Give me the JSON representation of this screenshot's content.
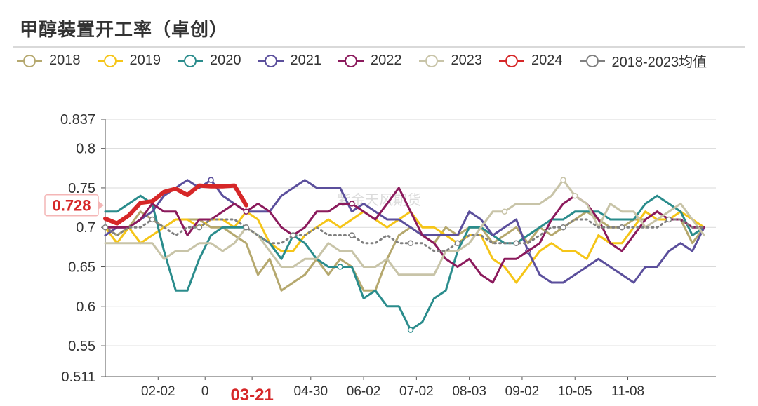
{
  "title": "甲醇装置开工率（卓创）",
  "watermark": "紫金天风期货",
  "chart_data": {
    "type": "line",
    "title": "甲醇装置开工率（卓创）",
    "xlabel": "",
    "ylabel": "",
    "ylim": [
      0.511,
      0.837
    ],
    "y_ticks": [
      "0.511",
      "0.55",
      "0.6",
      "0.65",
      "0.7",
      "0.75",
      "0.8",
      "0.837"
    ],
    "y_tick_values": [
      0.511,
      0.55,
      0.6,
      0.65,
      0.7,
      0.75,
      0.8,
      0.837
    ],
    "x_week_range": [
      0,
      52
    ],
    "x_ticks": [
      {
        "label": "02-02",
        "week": 4.5
      },
      {
        "label": "0",
        "week": 8.5
      },
      {
        "label": "03-21",
        "week": 12.5,
        "highlight": true
      },
      {
        "label": "04-30",
        "week": 17.5
      },
      {
        "label": "06-02",
        "week": 22
      },
      {
        "label": "07-02",
        "week": 26.5
      },
      {
        "label": "08-03",
        "week": 31
      },
      {
        "label": "09-02",
        "week": 35.5
      },
      {
        "label": "10-05",
        "week": 40
      },
      {
        "label": "11-08",
        "week": 44.5
      }
    ],
    "current_value_label": "0.728",
    "current_value": 0.728,
    "grid": true,
    "legend_position": "top",
    "series": [
      {
        "name": "2018",
        "color": "#b5a86e",
        "width": 3,
        "dash": "",
        "markers": [],
        "values": [
          0.7,
          0.69,
          0.7,
          0.72,
          0.71,
          0.7,
          0.71,
          0.71,
          0.71,
          0.7,
          0.7,
          0.69,
          0.68,
          0.64,
          0.66,
          0.62,
          0.63,
          0.64,
          0.66,
          0.64,
          0.66,
          0.65,
          0.62,
          0.62,
          0.66,
          0.69,
          0.7,
          0.69,
          0.68,
          0.7,
          0.69,
          0.7,
          0.7,
          0.68,
          0.69,
          0.7,
          0.68,
          0.7,
          0.69,
          0.7,
          0.71,
          0.72,
          0.71,
          0.7,
          0.7,
          0.71,
          0.71,
          0.72,
          0.71,
          0.71,
          0.68,
          0.7
        ]
      },
      {
        "name": "2019",
        "color": "#f5c518",
        "width": 3,
        "dash": "",
        "markers": [],
        "values": [
          0.7,
          0.68,
          0.7,
          0.68,
          0.69,
          0.7,
          0.71,
          0.71,
          0.7,
          0.71,
          0.71,
          0.7,
          0.72,
          0.71,
          0.68,
          0.67,
          0.67,
          0.69,
          0.7,
          0.71,
          0.7,
          0.71,
          0.72,
          0.71,
          0.7,
          0.71,
          0.72,
          0.7,
          0.7,
          0.69,
          0.68,
          0.69,
          0.69,
          0.66,
          0.65,
          0.63,
          0.65,
          0.67,
          0.68,
          0.67,
          0.67,
          0.66,
          0.69,
          0.68,
          0.68,
          0.7,
          0.72,
          0.71,
          0.71,
          0.72,
          0.71,
          0.7
        ]
      },
      {
        "name": "2020",
        "color": "#2a8c8c",
        "width": 3,
        "dash": "",
        "markers": [
          20,
          26
        ],
        "values": [
          0.72,
          0.72,
          0.73,
          0.74,
          0.73,
          0.67,
          0.62,
          0.62,
          0.66,
          0.69,
          0.7,
          0.7,
          0.7,
          0.69,
          0.68,
          0.66,
          0.69,
          0.68,
          0.66,
          0.65,
          0.65,
          0.65,
          0.61,
          0.62,
          0.6,
          0.6,
          0.57,
          0.58,
          0.61,
          0.62,
          0.67,
          0.7,
          0.7,
          0.69,
          0.68,
          0.68,
          0.69,
          0.7,
          0.71,
          0.71,
          0.72,
          0.72,
          0.72,
          0.71,
          0.71,
          0.71,
          0.73,
          0.74,
          0.73,
          0.72,
          0.69,
          0.7
        ]
      },
      {
        "name": "2021",
        "color": "#5b4f9c",
        "width": 3,
        "dash": "",
        "markers": [
          9,
          36
        ],
        "values": [
          0.69,
          0.7,
          0.7,
          0.71,
          0.72,
          0.74,
          0.75,
          0.76,
          0.75,
          0.76,
          0.74,
          0.73,
          0.72,
          0.72,
          0.72,
          0.74,
          0.75,
          0.76,
          0.75,
          0.75,
          0.75,
          0.72,
          0.73,
          0.72,
          0.71,
          0.71,
          0.7,
          0.69,
          0.69,
          0.69,
          0.69,
          0.72,
          0.71,
          0.69,
          0.7,
          0.71,
          0.67,
          0.64,
          0.63,
          0.63,
          0.64,
          0.65,
          0.66,
          0.65,
          0.64,
          0.63,
          0.65,
          0.65,
          0.67,
          0.68,
          0.67,
          0.7
        ]
      },
      {
        "name": "2022",
        "color": "#8b1a5c",
        "width": 3,
        "dash": "",
        "markers": [
          12,
          21
        ],
        "values": [
          0.7,
          0.7,
          0.7,
          0.71,
          0.73,
          0.72,
          0.72,
          0.69,
          0.71,
          0.71,
          0.72,
          0.73,
          0.72,
          0.73,
          0.72,
          0.7,
          0.69,
          0.7,
          0.72,
          0.72,
          0.73,
          0.73,
          0.72,
          0.71,
          0.73,
          0.75,
          0.72,
          0.69,
          0.68,
          0.66,
          0.65,
          0.66,
          0.64,
          0.63,
          0.66,
          0.66,
          0.67,
          0.68,
          0.71,
          0.73,
          0.74,
          0.73,
          0.71,
          0.68,
          0.67,
          0.69,
          0.71,
          0.72,
          0.71,
          0.71,
          0.7,
          0.7
        ]
      },
      {
        "name": "2023",
        "color": "#c8c4a8",
        "width": 3,
        "dash": "",
        "markers": [
          34,
          39,
          40
        ],
        "values": [
          0.68,
          0.68,
          0.68,
          0.68,
          0.68,
          0.66,
          0.67,
          0.67,
          0.68,
          0.68,
          0.67,
          0.68,
          0.7,
          0.69,
          0.67,
          0.65,
          0.65,
          0.66,
          0.66,
          0.68,
          0.67,
          0.67,
          0.65,
          0.65,
          0.66,
          0.64,
          0.64,
          0.64,
          0.64,
          0.67,
          0.67,
          0.68,
          0.7,
          0.72,
          0.72,
          0.73,
          0.73,
          0.73,
          0.74,
          0.76,
          0.74,
          0.73,
          0.7,
          0.73,
          0.72,
          0.72,
          0.7,
          0.71,
          0.72,
          0.73,
          0.71,
          0.69
        ]
      },
      {
        "name": "2024",
        "color": "#d62728",
        "width": 6,
        "dash": "",
        "markers": [],
        "values": [
          0.711,
          0.705,
          0.715,
          0.731,
          0.733,
          0.745,
          0.749,
          0.741,
          0.753,
          0.752,
          0.752,
          0.753,
          0.728
        ]
      },
      {
        "name": "2018-2023均值",
        "color": "#808080",
        "width": 3,
        "dash": "2,5",
        "markers": [
          0,
          4,
          8,
          12,
          16,
          21,
          26,
          30,
          35,
          39,
          44,
          48
        ],
        "values": [
          0.7,
          0.69,
          0.7,
          0.7,
          0.71,
          0.7,
          0.69,
          0.7,
          0.7,
          0.71,
          0.71,
          0.71,
          0.7,
          0.69,
          0.68,
          0.68,
          0.69,
          0.69,
          0.7,
          0.69,
          0.69,
          0.69,
          0.68,
          0.68,
          0.69,
          0.68,
          0.68,
          0.68,
          0.67,
          0.67,
          0.68,
          0.69,
          0.69,
          0.68,
          0.68,
          0.68,
          0.68,
          0.69,
          0.7,
          0.7,
          0.71,
          0.71,
          0.7,
          0.7,
          0.7,
          0.7,
          0.7,
          0.7,
          0.71,
          0.71,
          0.7,
          0.7
        ]
      }
    ]
  }
}
